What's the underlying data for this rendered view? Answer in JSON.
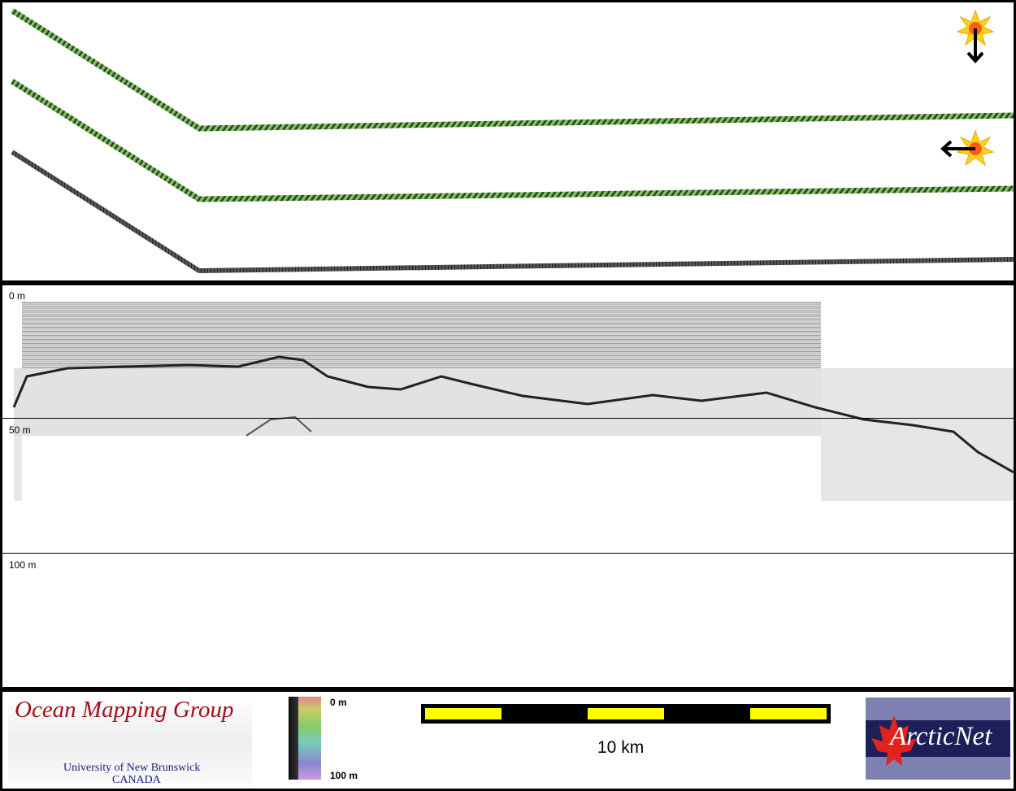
{
  "profile": {
    "depth_labels": [
      "0 m",
      "50 m",
      "100 m"
    ]
  },
  "icons": {
    "sun_top": "sun-illumination-icon",
    "sun_bottom": "sun-illumination-icon"
  },
  "legend": {
    "colorbar_top": "0 m",
    "colorbar_bottom": "100 m",
    "scale_label": "10 km"
  },
  "logos": {
    "omg_title": "Ocean Mapping Group",
    "omg_line1": "University of New Brunswick",
    "omg_line2": "CANADA",
    "arcticnet": "ArcticNet"
  },
  "colors": {
    "swath_green": "#5a9a3a",
    "scale_yellow": "#ffff00",
    "omg_red": "#a01018",
    "arctic_navy": "#1c1f58"
  }
}
